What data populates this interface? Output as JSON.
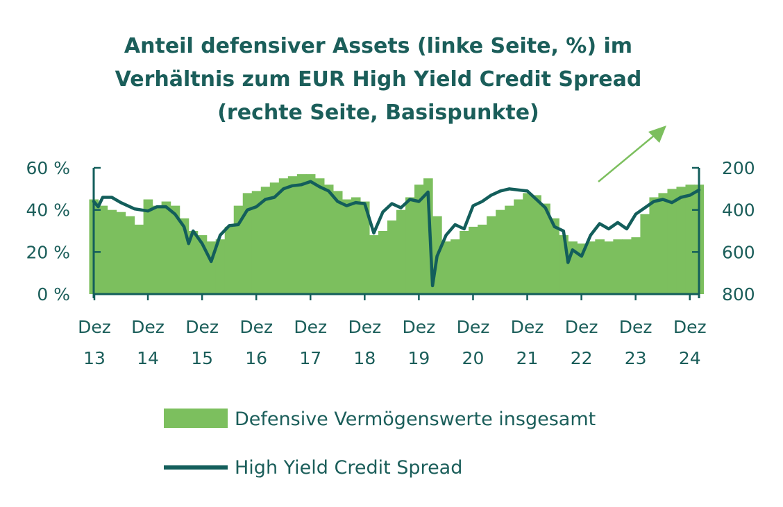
{
  "chart_data": {
    "type": "bar",
    "title_lines": [
      "Anteil defensiver Assets (linke Seite, %) im",
      "Verhältnis zum EUR High Yield Credit Spread",
      "(rechte Seite, Basispunkte)"
    ],
    "x_ticks": [
      {
        "month": "Dez",
        "year": "13"
      },
      {
        "month": "Dez",
        "year": "14"
      },
      {
        "month": "Dez",
        "year": "15"
      },
      {
        "month": "Dez",
        "year": "16"
      },
      {
        "month": "Dez",
        "year": "17"
      },
      {
        "month": "Dez",
        "year": "18"
      },
      {
        "month": "Dez",
        "year": "19"
      },
      {
        "month": "Dez",
        "year": "20"
      },
      {
        "month": "Dez",
        "year": "21"
      },
      {
        "month": "Dez",
        "year": "22"
      },
      {
        "month": "Dez",
        "year": "23"
      },
      {
        "month": "Dez",
        "year": "24"
      }
    ],
    "x_range": [
      "2013-12",
      "2025-02"
    ],
    "y_left": {
      "ticks": [
        "0 %",
        "20 %",
        "40 %",
        "60 %"
      ],
      "tick_values": [
        0,
        20,
        40,
        60
      ],
      "range": [
        0,
        60
      ]
    },
    "y_right": {
      "ticks": [
        "200",
        "400",
        "600",
        "800"
      ],
      "tick_values": [
        200,
        400,
        600,
        800
      ],
      "range": [
        200,
        800
      ],
      "inverted": true
    },
    "series": [
      {
        "name": "Defensive Vermögenswerte insgesamt",
        "type": "bar",
        "axis": "left",
        "color": "#7cbf5e",
        "points": [
          [
            "2013-12",
            45
          ],
          [
            "2014-02",
            42
          ],
          [
            "2014-04",
            40
          ],
          [
            "2014-06",
            39
          ],
          [
            "2014-08",
            37
          ],
          [
            "2014-10",
            33
          ],
          [
            "2014-12",
            45
          ],
          [
            "2015-02",
            42
          ],
          [
            "2015-04",
            44
          ],
          [
            "2015-06",
            42
          ],
          [
            "2015-08",
            36
          ],
          [
            "2015-10",
            30
          ],
          [
            "2015-12",
            28
          ],
          [
            "2016-02",
            25
          ],
          [
            "2016-04",
            26
          ],
          [
            "2016-06",
            32
          ],
          [
            "2016-08",
            42
          ],
          [
            "2016-10",
            48
          ],
          [
            "2016-12",
            49
          ],
          [
            "2017-02",
            51
          ],
          [
            "2017-04",
            53
          ],
          [
            "2017-06",
            55
          ],
          [
            "2017-08",
            56
          ],
          [
            "2017-10",
            57
          ],
          [
            "2017-12",
            57
          ],
          [
            "2018-02",
            55
          ],
          [
            "2018-04",
            52
          ],
          [
            "2018-06",
            49
          ],
          [
            "2018-08",
            45
          ],
          [
            "2018-10",
            46
          ],
          [
            "2018-12",
            44
          ],
          [
            "2019-02",
            28
          ],
          [
            "2019-04",
            30
          ],
          [
            "2019-06",
            35
          ],
          [
            "2019-08",
            40
          ],
          [
            "2019-10",
            46
          ],
          [
            "2019-12",
            52
          ],
          [
            "2020-02",
            55
          ],
          [
            "2020-04",
            37
          ],
          [
            "2020-06",
            25
          ],
          [
            "2020-08",
            26
          ],
          [
            "2020-10",
            30
          ],
          [
            "2020-12",
            32
          ],
          [
            "2021-02",
            33
          ],
          [
            "2021-04",
            37
          ],
          [
            "2021-06",
            40
          ],
          [
            "2021-08",
            42
          ],
          [
            "2021-10",
            45
          ],
          [
            "2021-12",
            48
          ],
          [
            "2022-02",
            47
          ],
          [
            "2022-04",
            43
          ],
          [
            "2022-06",
            36
          ],
          [
            "2022-08",
            28
          ],
          [
            "2022-10",
            25
          ],
          [
            "2022-12",
            24
          ],
          [
            "2023-02",
            25
          ],
          [
            "2023-04",
            26
          ],
          [
            "2023-06",
            25
          ],
          [
            "2023-08",
            26
          ],
          [
            "2023-10",
            26
          ],
          [
            "2023-12",
            27
          ],
          [
            "2024-02",
            38
          ],
          [
            "2024-04",
            46
          ],
          [
            "2024-06",
            48
          ],
          [
            "2024-08",
            50
          ],
          [
            "2024-10",
            51
          ],
          [
            "2024-12",
            52
          ],
          [
            "2025-02",
            52
          ]
        ]
      },
      {
        "name": "High Yield Credit Spread",
        "type": "line",
        "axis": "right",
        "color": "#135e5b",
        "points": [
          [
            "2013-12",
            360
          ],
          [
            "2014-01",
            385
          ],
          [
            "2014-02",
            340
          ],
          [
            "2014-04",
            340
          ],
          [
            "2014-06",
            365
          ],
          [
            "2014-09",
            395
          ],
          [
            "2014-12",
            405
          ],
          [
            "2015-02",
            385
          ],
          [
            "2015-04",
            385
          ],
          [
            "2015-06",
            420
          ],
          [
            "2015-08",
            480
          ],
          [
            "2015-09",
            560
          ],
          [
            "2015-10",
            500
          ],
          [
            "2015-12",
            560
          ],
          [
            "2016-02",
            645
          ],
          [
            "2016-04",
            520
          ],
          [
            "2016-06",
            475
          ],
          [
            "2016-08",
            470
          ],
          [
            "2016-10",
            400
          ],
          [
            "2016-12",
            385
          ],
          [
            "2017-02",
            350
          ],
          [
            "2017-04",
            340
          ],
          [
            "2017-06",
            300
          ],
          [
            "2017-08",
            285
          ],
          [
            "2017-10",
            280
          ],
          [
            "2017-12",
            265
          ],
          [
            "2018-02",
            290
          ],
          [
            "2018-04",
            310
          ],
          [
            "2018-06",
            360
          ],
          [
            "2018-08",
            380
          ],
          [
            "2018-10",
            365
          ],
          [
            "2018-12",
            370
          ],
          [
            "2019-02",
            510
          ],
          [
            "2019-04",
            410
          ],
          [
            "2019-06",
            370
          ],
          [
            "2019-08",
            390
          ],
          [
            "2019-10",
            350
          ],
          [
            "2019-12",
            360
          ],
          [
            "2020-02",
            315
          ],
          [
            "2020-03",
            760
          ],
          [
            "2020-04",
            620
          ],
          [
            "2020-06",
            520
          ],
          [
            "2020-08",
            470
          ],
          [
            "2020-10",
            490
          ],
          [
            "2020-12",
            380
          ],
          [
            "2021-02",
            360
          ],
          [
            "2021-04",
            330
          ],
          [
            "2021-06",
            310
          ],
          [
            "2021-08",
            300
          ],
          [
            "2021-10",
            305
          ],
          [
            "2021-12",
            310
          ],
          [
            "2022-02",
            350
          ],
          [
            "2022-04",
            390
          ],
          [
            "2022-06",
            480
          ],
          [
            "2022-08",
            500
          ],
          [
            "2022-09",
            650
          ],
          [
            "2022-10",
            590
          ],
          [
            "2022-12",
            620
          ],
          [
            "2023-02",
            520
          ],
          [
            "2023-04",
            465
          ],
          [
            "2023-06",
            490
          ],
          [
            "2023-08",
            460
          ],
          [
            "2023-10",
            490
          ],
          [
            "2023-12",
            420
          ],
          [
            "2024-02",
            390
          ],
          [
            "2024-04",
            360
          ],
          [
            "2024-06",
            350
          ],
          [
            "2024-08",
            365
          ],
          [
            "2024-10",
            340
          ],
          [
            "2024-12",
            330
          ],
          [
            "2025-02",
            305
          ]
        ]
      }
    ],
    "annotations": [
      {
        "type": "arrow",
        "description": "upward trend arrow",
        "color": "#7cbf5e"
      }
    ],
    "legend": {
      "placement": "bottom"
    },
    "grid": false
  }
}
